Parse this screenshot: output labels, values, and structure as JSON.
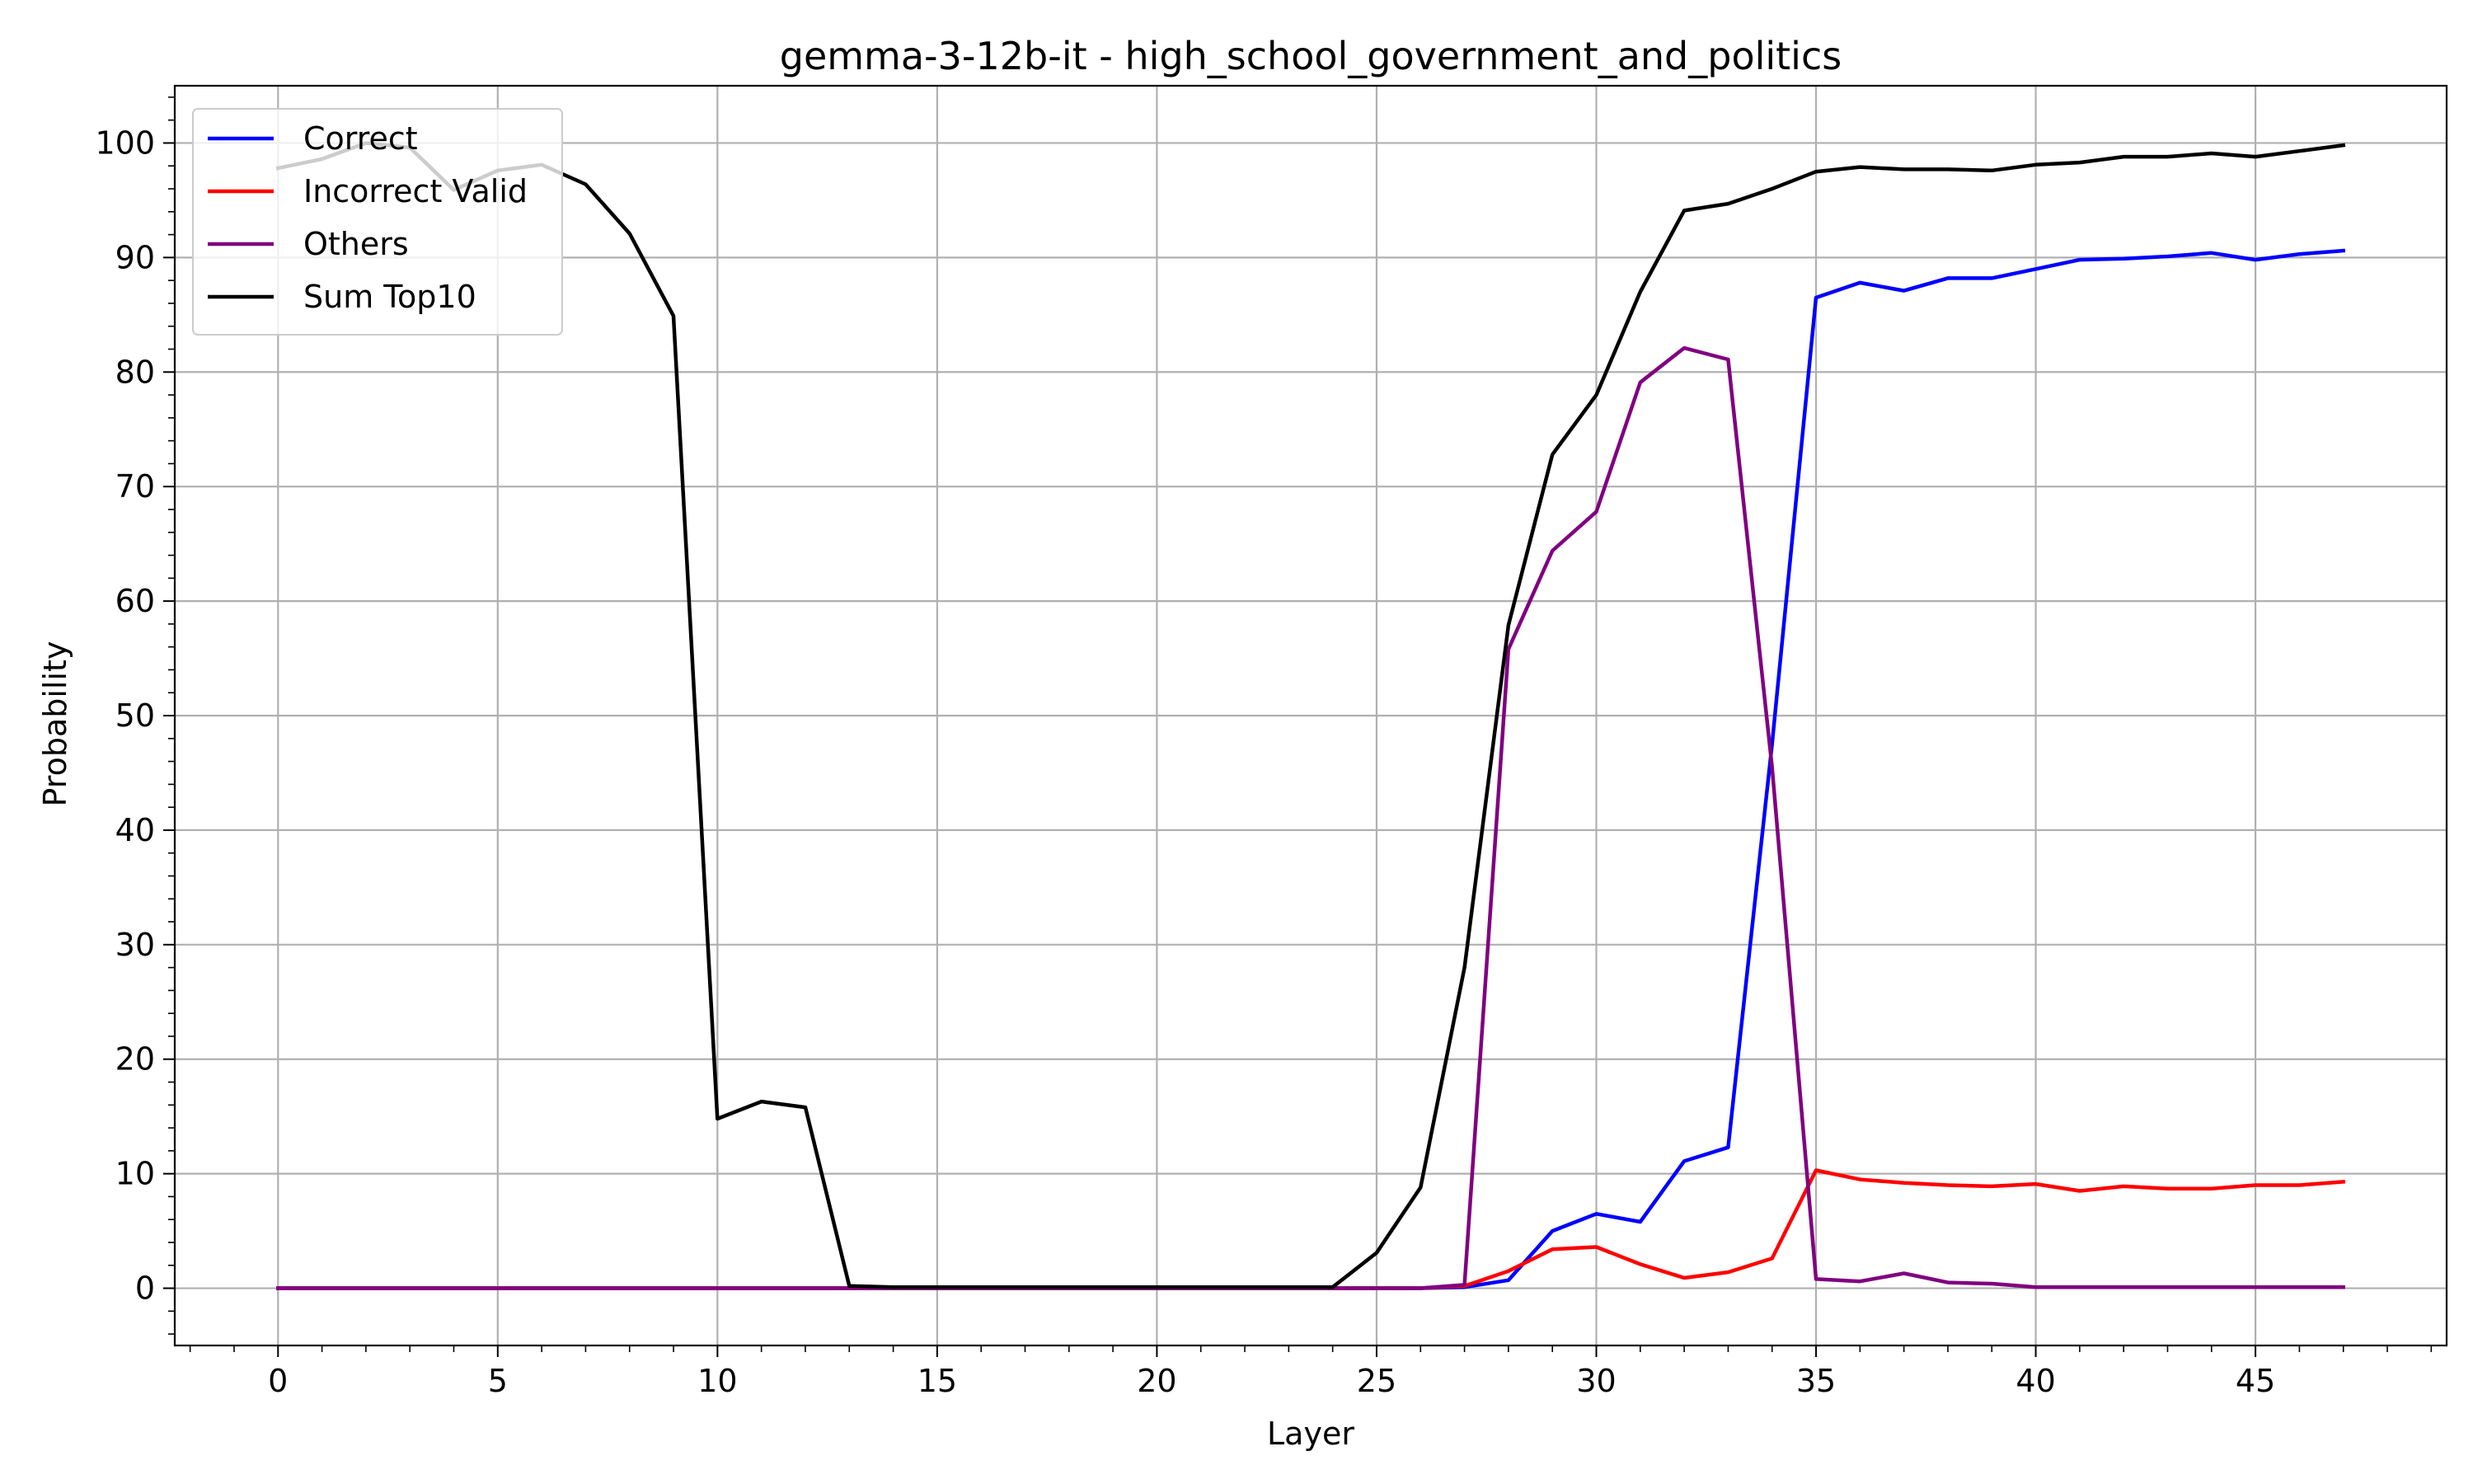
{
  "chart_data": {
    "type": "line",
    "title": "gemma-3-12b-it - high_school_government_and_politics",
    "xlabel": "Layer",
    "ylabel": "Probability",
    "xlim": [
      -2.35,
      49.35
    ],
    "ylim": [
      -5,
      105
    ],
    "xticks": [
      0,
      5,
      10,
      15,
      20,
      25,
      30,
      35,
      40,
      45
    ],
    "yticks": [
      0,
      10,
      20,
      30,
      40,
      50,
      60,
      70,
      80,
      90,
      100
    ],
    "grid": true,
    "legend_position": "top-left",
    "x": [
      0,
      1,
      2,
      3,
      4,
      5,
      6,
      7,
      8,
      9,
      10,
      11,
      12,
      13,
      14,
      15,
      16,
      17,
      18,
      19,
      20,
      21,
      22,
      23,
      24,
      25,
      26,
      27,
      28,
      29,
      30,
      31,
      32,
      33,
      34,
      35,
      36,
      37,
      38,
      39,
      40,
      41,
      42,
      43,
      44,
      45,
      46,
      47
    ],
    "series": [
      {
        "name": "Correct",
        "color": "#0000ff",
        "values": [
          0,
          0,
          0,
          0,
          0,
          0,
          0,
          0,
          0,
          0,
          0,
          0,
          0,
          0,
          0,
          0,
          0,
          0,
          0,
          0,
          0,
          0,
          0,
          0,
          0,
          0,
          0,
          0.1,
          0.7,
          5.0,
          6.5,
          5.8,
          11.1,
          12.3,
          47.5,
          86.5,
          87.8,
          87.1,
          88.2,
          88.2,
          89.0,
          89.8,
          89.9,
          90.1,
          90.4,
          89.8,
          90.3,
          90.6
        ]
      },
      {
        "name": "Incorrect Valid",
        "color": "#ff0000",
        "values": [
          0,
          0,
          0,
          0,
          0,
          0,
          0,
          0,
          0,
          0,
          0,
          0,
          0,
          0,
          0,
          0,
          0,
          0,
          0,
          0,
          0,
          0,
          0,
          0,
          0,
          0,
          0,
          0.2,
          1.5,
          3.4,
          3.6,
          2.1,
          0.9,
          1.4,
          2.6,
          10.3,
          9.5,
          9.2,
          9.0,
          8.9,
          9.1,
          8.5,
          8.9,
          8.7,
          8.7,
          9.0,
          9.0,
          9.3
        ]
      },
      {
        "name": "Others",
        "color": "#800080",
        "values": [
          0,
          0,
          0,
          0,
          0,
          0,
          0,
          0,
          0,
          0,
          0,
          0,
          0,
          0,
          0,
          0,
          0,
          0,
          0,
          0,
          0,
          0,
          0,
          0,
          0,
          0,
          0,
          0.3,
          55.8,
          64.4,
          67.8,
          79.1,
          82.1,
          81.1,
          45.5,
          0.8,
          0.6,
          1.3,
          0.5,
          0.4,
          0.1,
          0.1,
          0.1,
          0.1,
          0.1,
          0.1,
          0.1,
          0.1
        ]
      },
      {
        "name": "Sum Top10",
        "color": "#000000",
        "values": [
          97.8,
          98.6,
          100.0,
          99.6,
          95.9,
          97.6,
          98.1,
          96.4,
          92.1,
          84.9,
          14.8,
          16.3,
          15.8,
          0.2,
          0.1,
          0.1,
          0.1,
          0.1,
          0.1,
          0.1,
          0.1,
          0.1,
          0.1,
          0.1,
          0.1,
          3.1,
          8.8,
          28.0,
          57.9,
          72.8,
          78.0,
          87.0,
          94.1,
          94.7,
          96.0,
          97.5,
          97.9,
          97.7,
          97.7,
          97.6,
          98.1,
          98.3,
          98.8,
          98.8,
          99.1,
          98.8,
          99.3,
          99.8
        ]
      }
    ]
  }
}
